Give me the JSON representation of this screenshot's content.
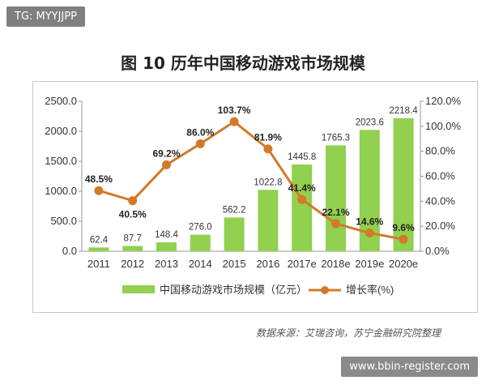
{
  "header": {
    "tag_text": "TG: MYYJJPP"
  },
  "footer": {
    "source": "数据来源：艾瑞咨询，苏宁金融研究院整理",
    "watermark": "www.bbin-register.com"
  },
  "colors": {
    "bar": "#92d050",
    "line": "#d27a2a",
    "axis": "#999999"
  },
  "chart_data": {
    "type": "bar",
    "title": "图 10 历年中国移动游戏市场规模",
    "categories": [
      "2011",
      "2012",
      "2013",
      "2014",
      "2015",
      "2016",
      "2017e",
      "2018e",
      "2019e",
      "2020e"
    ],
    "series": [
      {
        "name": "中国移动游戏市场规模（亿元）",
        "type": "bar",
        "axis": "left",
        "values": [
          62.4,
          87.7,
          148.4,
          276.0,
          562.2,
          1022.8,
          1445.8,
          1765.3,
          2023.6,
          2218.4
        ],
        "labels": [
          "62.4",
          "87.7",
          "148.4",
          "276.0",
          "562.2",
          "1022.8",
          "1445.8",
          "1765.3",
          "2023.6",
          "2218.4"
        ]
      },
      {
        "name": "增长率(%)",
        "type": "line",
        "axis": "right",
        "values": [
          48.5,
          40.5,
          69.2,
          86.0,
          103.7,
          81.9,
          41.4,
          22.1,
          14.6,
          9.6
        ],
        "labels": [
          "48.5%",
          "40.5%",
          "69.2%",
          "86.0%",
          "103.7%",
          "81.9%",
          "41.4%",
          "22.1%",
          "14.6%",
          "9.6%"
        ]
      }
    ],
    "y_left": {
      "ylim": [
        0,
        2500
      ],
      "ticks": [
        "0.0",
        "500.0",
        "1000.0",
        "1500.0",
        "2000.0",
        "2500.0"
      ]
    },
    "y_right": {
      "ylim": [
        0,
        120
      ],
      "ticks": [
        "0.0%",
        "20.0%",
        "40.0%",
        "60.0%",
        "80.0%",
        "100.0%",
        "120.0%"
      ]
    },
    "grid": false,
    "legend_position": "bottom"
  }
}
